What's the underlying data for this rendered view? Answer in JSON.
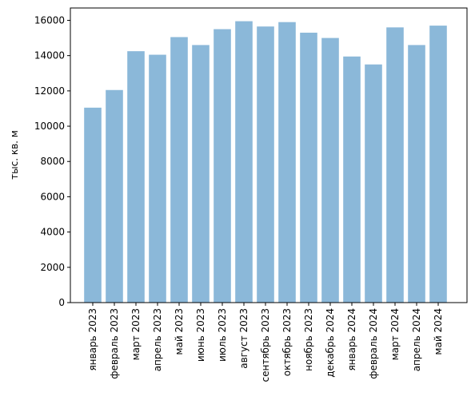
{
  "chart_data": {
    "type": "bar",
    "title": "",
    "xlabel": "",
    "ylabel": "тыс. кв. м",
    "categories": [
      "январь 2023",
      "февраль 2023",
      "март 2023",
      "апрель 2023",
      "май 2023",
      "июнь 2023",
      "июль 2023",
      "август 2023",
      "сентябрь 2023",
      "октябрь 2023",
      "ноябрь 2023",
      "декабрь 2024",
      "январь 2024",
      "февраль 2024",
      "март 2024",
      "апрель 2024",
      "май 2024"
    ],
    "values": [
      11050,
      12050,
      14250,
      14050,
      15050,
      14600,
      15500,
      15950,
      15650,
      15900,
      15300,
      15000,
      13950,
      13500,
      15600,
      14600,
      15700
    ],
    "ylim": [
      0,
      16700
    ],
    "yticks": [
      0,
      2000,
      4000,
      6000,
      8000,
      10000,
      12000,
      14000,
      16000
    ],
    "bar_color": "#8bb8d9",
    "grid": false,
    "legend": "none"
  }
}
